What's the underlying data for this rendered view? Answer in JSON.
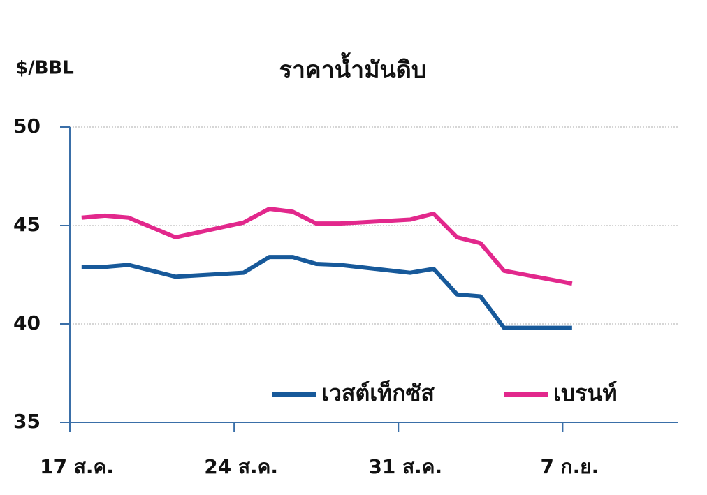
{
  "chart_data": {
    "type": "line",
    "title": "ราคาน้ำมันดิบ",
    "y_label": "$/BBL",
    "x": [
      17.5,
      18.5,
      19.5,
      21.5,
      24.4,
      25.5,
      26.5,
      27.5,
      28.5,
      31.5,
      32.5,
      33.5,
      34.5,
      35.5,
      38.4
    ],
    "series": [
      {
        "name": "เวสต์เท็กซัส",
        "color": "#17599a",
        "values": [
          42.9,
          42.9,
          43.0,
          42.4,
          42.6,
          43.4,
          43.4,
          43.05,
          43.0,
          42.6,
          42.8,
          41.5,
          41.4,
          39.8,
          39.8
        ]
      },
      {
        "name": "เบรนท์",
        "color": "#e2288c",
        "values": [
          45.4,
          45.5,
          45.4,
          44.4,
          45.15,
          45.85,
          45.7,
          45.1,
          45.1,
          45.3,
          45.6,
          44.4,
          44.1,
          42.7,
          42.05
        ]
      }
    ],
    "xlim": [
      17,
      42.9
    ],
    "xticks": [
      {
        "value": 17,
        "label": "17 ส.ค."
      },
      {
        "value": 24,
        "label": "24 ส.ค."
      },
      {
        "value": 31,
        "label": "31 ส.ค."
      },
      {
        "value": 38,
        "label": "7 ก.ย."
      }
    ],
    "ylim": [
      35,
      50
    ],
    "yticks": [
      35,
      40,
      45,
      50
    ],
    "grid": true,
    "legend": "bottom"
  }
}
